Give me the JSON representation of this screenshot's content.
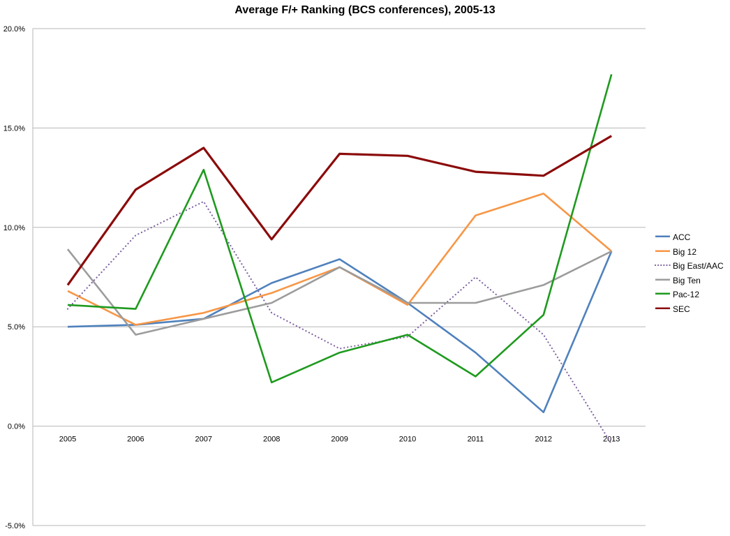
{
  "chart_data": {
    "type": "line",
    "title": "Average F/+ Ranking (BCS conferences), 2005-13",
    "xlabel": "",
    "ylabel": "",
    "categories": [
      "2005",
      "2006",
      "2007",
      "2008",
      "2009",
      "2010",
      "2011",
      "2012",
      "2013"
    ],
    "ylim": [
      -5.0,
      20.0
    ],
    "yticks": [
      "-5.0%",
      "0.0%",
      "5.0%",
      "10.0%",
      "15.0%",
      "20.0%"
    ],
    "ytick_values": [
      -5,
      0,
      5,
      10,
      15,
      20
    ],
    "grid": true,
    "legend_position": "right",
    "series": [
      {
        "name": "ACC",
        "color": "#4f81bd",
        "dash": false,
        "values": [
          5.0,
          5.1,
          5.4,
          7.2,
          8.4,
          6.2,
          3.7,
          0.7,
          8.8
        ]
      },
      {
        "name": "Big 12",
        "color": "#f79646",
        "dash": false,
        "values": [
          6.8,
          5.1,
          5.7,
          6.7,
          8.0,
          6.1,
          10.6,
          11.7,
          8.8
        ]
      },
      {
        "name": "Big East/AAC",
        "color": "#8064a2",
        "dash": true,
        "values": [
          5.9,
          9.6,
          11.3,
          5.7,
          3.9,
          4.5,
          7.5,
          4.6,
          -0.9
        ]
      },
      {
        "name": "Big Ten",
        "color": "#9c9c9c",
        "dash": false,
        "values": [
          8.9,
          4.6,
          5.4,
          6.2,
          8.0,
          6.2,
          6.2,
          7.1,
          8.8
        ]
      },
      {
        "name": "Pac-12",
        "color": "#1e9a1e",
        "dash": false,
        "values": [
          6.1,
          5.9,
          12.9,
          2.2,
          3.7,
          4.6,
          2.5,
          5.6,
          17.7
        ]
      },
      {
        "name": "SEC",
        "color": "#8b0a0a",
        "dash": false,
        "values": [
          7.1,
          11.9,
          14.0,
          9.4,
          13.7,
          13.6,
          12.8,
          12.6,
          14.6
        ]
      }
    ]
  }
}
